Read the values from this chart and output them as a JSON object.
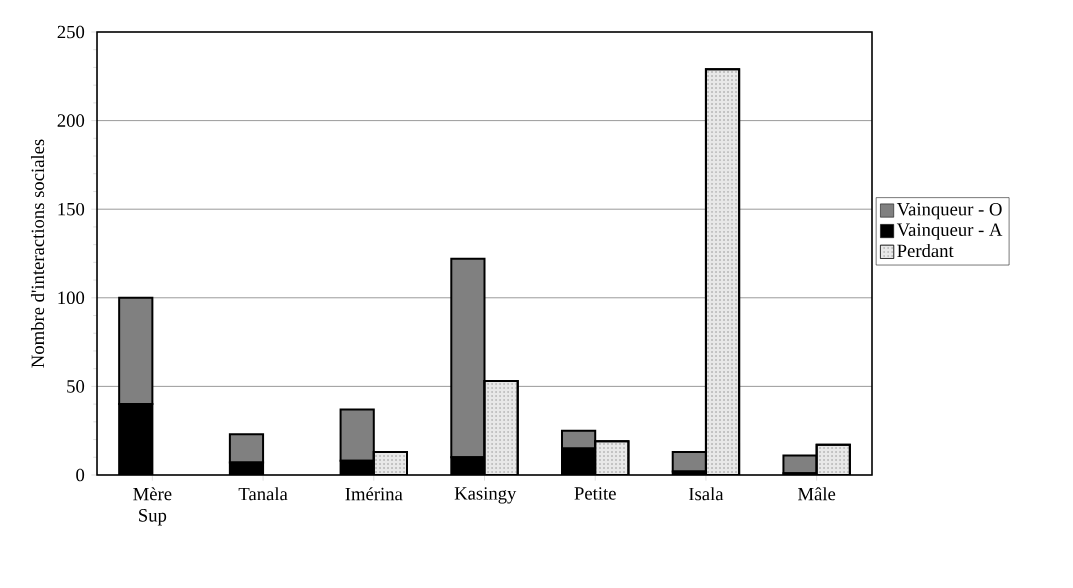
{
  "chart_data": {
    "type": "bar",
    "ylabel": "Nombre d'interactions sociales",
    "categories": [
      "Mère Sup",
      "Tanala",
      "Imérina",
      "Kasingy",
      "Petite",
      "Isala",
      "Mâle"
    ],
    "ylim": [
      0,
      250
    ],
    "yticks": [
      0,
      50,
      100,
      150,
      200,
      250
    ],
    "grid": "y",
    "legend": "right",
    "series": [
      {
        "name": "Vainqueur - O",
        "color": "#808080",
        "values": [
          60,
          16,
          29,
          112,
          10,
          11,
          10
        ],
        "base": [
          40,
          7,
          8,
          10,
          15,
          2,
          1
        ]
      },
      {
        "name": "Vainqueur - A",
        "color": "#000000",
        "values": [
          40,
          7,
          8,
          10,
          15,
          2,
          1
        ]
      },
      {
        "name": "Perdant",
        "color": "#e8e8e8",
        "values": [
          null,
          null,
          13,
          53,
          19,
          229,
          17
        ]
      }
    ]
  }
}
